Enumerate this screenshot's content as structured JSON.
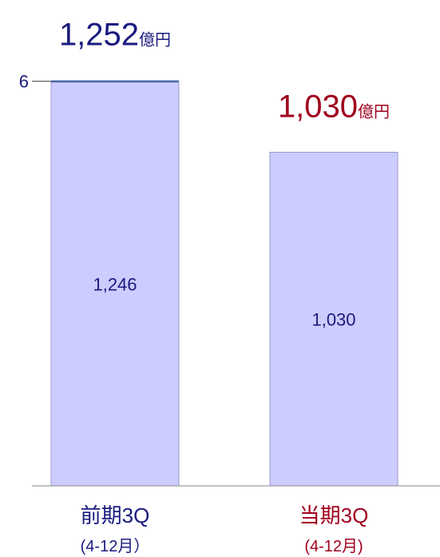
{
  "chart_data": {
    "type": "stacked_bar",
    "categories": [
      "前期3Q",
      "当期3Q"
    ],
    "category_sublabels": [
      "(4-12月）",
      "(4-12月)"
    ],
    "category_colors": [
      "#1a1a80",
      "#a0001e"
    ],
    "series": [
      {
        "color": "#ccccff",
        "values": [
          1246,
          1030
        ],
        "value_labels": [
          "1,246",
          "1,030"
        ]
      },
      {
        "color": "#4a6aa8",
        "values": [
          6,
          0
        ],
        "value_labels": [
          "6",
          null
        ]
      }
    ],
    "totals": {
      "values": [
        1252,
        1030
      ],
      "value_labels": [
        "1,252",
        "1,030"
      ],
      "unit": "億円"
    },
    "ylim": [
      0,
      1500
    ]
  }
}
